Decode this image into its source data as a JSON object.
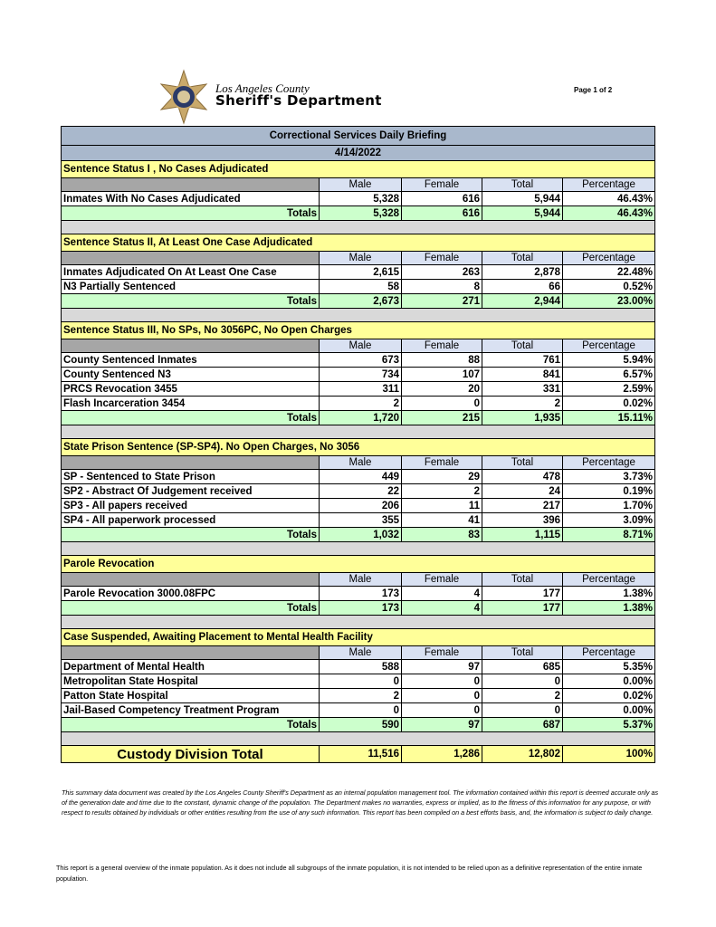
{
  "header": {
    "logo_line1": "Los Angeles County",
    "logo_line2": "Sheriff's Department",
    "page": "Page 1 of 2"
  },
  "report": {
    "title": "Correctional Services Daily Briefing",
    "date": "4/14/2022"
  },
  "columns": [
    "Male",
    "Female",
    "Total",
    "Percentage"
  ],
  "totals_label": "Totals",
  "sections": [
    {
      "title": "Sentence Status I , No Cases Adjudicated",
      "rows": [
        [
          "Inmates With No Cases Adjudicated",
          "5,328",
          "616",
          "5,944",
          "46.43%"
        ]
      ],
      "totals": [
        "5,328",
        "616",
        "5,944",
        "46.43%"
      ]
    },
    {
      "title": "Sentence Status II, At Least One Case Adjudicated",
      "rows": [
        [
          "Inmates Adjudicated On At Least One Case",
          "2,615",
          "263",
          "2,878",
          "22.48%"
        ],
        [
          "N3 Partially Sentenced",
          "58",
          "8",
          "66",
          "0.52%"
        ]
      ],
      "totals": [
        "2,673",
        "271",
        "2,944",
        "23.00%"
      ]
    },
    {
      "title": "Sentence Status III, No SPs, No 3056PC, No Open Charges",
      "rows": [
        [
          "County Sentenced Inmates",
          "673",
          "88",
          "761",
          "5.94%"
        ],
        [
          "County Sentenced N3",
          "734",
          "107",
          "841",
          "6.57%"
        ],
        [
          "PRCS Revocation 3455",
          "311",
          "20",
          "331",
          "2.59%"
        ],
        [
          "Flash Incarceration 3454",
          "2",
          "0",
          "2",
          "0.02%"
        ]
      ],
      "totals": [
        "1,720",
        "215",
        "1,935",
        "15.11%"
      ]
    },
    {
      "title": "State Prison Sentence (SP-SP4). No Open Charges, No 3056",
      "rows": [
        [
          "SP - Sentenced to State Prison",
          "449",
          "29",
          "478",
          "3.73%"
        ],
        [
          "SP2 - Abstract Of Judgement received",
          "22",
          "2",
          "24",
          "0.19%"
        ],
        [
          "SP3 - All papers received",
          "206",
          "11",
          "217",
          "1.70%"
        ],
        [
          "SP4 - All paperwork processed",
          "355",
          "41",
          "396",
          "3.09%"
        ]
      ],
      "totals": [
        "1,032",
        "83",
        "1,115",
        "8.71%"
      ]
    },
    {
      "title": "Parole Revocation",
      "rows": [
        [
          "Parole Revocation 3000.08FPC",
          "173",
          "4",
          "177",
          "1.38%"
        ]
      ],
      "totals": [
        "173",
        "4",
        "177",
        "1.38%"
      ]
    },
    {
      "title": "Case Suspended, Awaiting Placement to Mental Health Facility",
      "rows": [
        [
          "Department of Mental Health",
          "588",
          "97",
          "685",
          "5.35%"
        ],
        [
          "Metropolitan State Hospital",
          "0",
          "0",
          "0",
          "0.00%"
        ],
        [
          "Patton State Hospital",
          "2",
          "0",
          "2",
          "0.02%"
        ],
        [
          "Jail-Based Competency Treatment Program",
          "0",
          "0",
          "0",
          "0.00%"
        ]
      ],
      "totals": [
        "590",
        "97",
        "687",
        "5.37%"
      ]
    }
  ],
  "grand_total": {
    "label": "Custody Division Total",
    "values": [
      "11,516",
      "1,286",
      "12,802",
      "100%"
    ]
  },
  "disclaimer1": "This summary data document was created by the Los Angeles County Sheriff's Department as an internal population management tool.  The information contained within this report is deemed accurate only as of the generation date and time due to the constant, dynamic change of the population.  The Department makes no warranties, express or implied, as to the fitness of this information for any purpose, or with respect to results obtained by individuals or other entities resulting from the use of any such information.  This report has been compiled on a best efforts basis, and, the information is subject to daily change.",
  "disclaimer2": "This report is a general overview of the inmate population.  As it does not include all subgroups of the inmate population, it is not intended to be relied upon as a definitive representation of the entire inmate population.",
  "colors": {
    "title_bg": "#a9b8cc",
    "section_bg": "#ffff99",
    "totals_bg": "#ccffcc",
    "spacer_bg": "#d9d9d9"
  }
}
